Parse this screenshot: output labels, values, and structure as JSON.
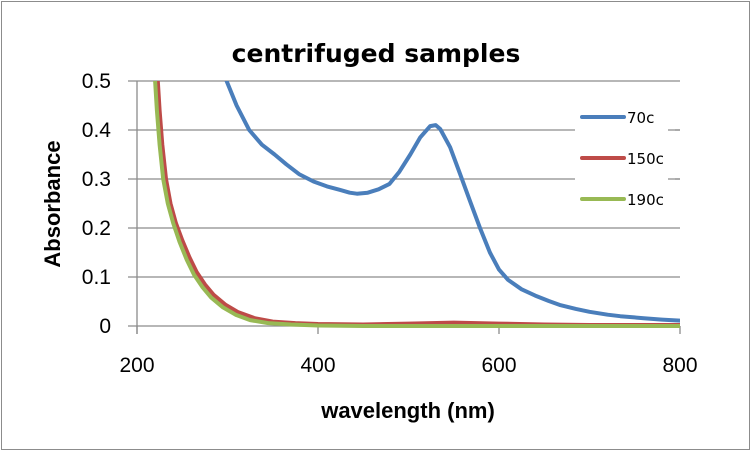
{
  "chart_data": {
    "type": "line",
    "title": "centrifuged samples",
    "xlabel": "wavelength (nm)",
    "ylabel": "Absorbance",
    "xlim": [
      200,
      800
    ],
    "ylim": [
      0,
      0.5
    ],
    "xticks": [
      200,
      400,
      600,
      800
    ],
    "xtick_labels": [
      "200",
      "400",
      "600",
      "800"
    ],
    "yticks": [
      0,
      0.1,
      0.2,
      0.3,
      0.4,
      0.5
    ],
    "ytick_labels": [
      "0",
      "0.1",
      "0.2",
      "0.3",
      "0.4",
      "0.5"
    ],
    "grid": "horizontal",
    "legend_position": "right",
    "series": [
      {
        "name": "70c",
        "color": "#4a7ebb",
        "x": [
          299,
          310,
          324,
          338,
          352,
          365,
          379,
          395,
          410,
          424,
          435,
          443,
          455,
          467,
          479,
          490,
          502,
          513,
          524,
          530,
          535,
          546,
          557,
          568,
          579,
          590,
          600,
          610,
          625,
          640,
          655,
          667,
          685,
          700,
          720,
          734,
          760,
          780,
          800
        ],
        "y": [
          0.5,
          0.45,
          0.4,
          0.37,
          0.35,
          0.33,
          0.31,
          0.295,
          0.285,
          0.278,
          0.272,
          0.27,
          0.272,
          0.279,
          0.29,
          0.315,
          0.35,
          0.385,
          0.408,
          0.41,
          0.402,
          0.365,
          0.31,
          0.255,
          0.2,
          0.15,
          0.115,
          0.094,
          0.075,
          0.062,
          0.051,
          0.043,
          0.035,
          0.029,
          0.023,
          0.02,
          0.016,
          0.013,
          0.011
        ]
      },
      {
        "name": "150c",
        "color": "#be4b48",
        "x": [
          223,
          225,
          228,
          232,
          237,
          243,
          250,
          258,
          266,
          275,
          285,
          298,
          312,
          330,
          350,
          375,
          400,
          450,
          500,
          550,
          600,
          650,
          700,
          750,
          800
        ],
        "y": [
          0.5,
          0.44,
          0.37,
          0.3,
          0.25,
          0.21,
          0.175,
          0.14,
          0.11,
          0.085,
          0.063,
          0.043,
          0.028,
          0.016,
          0.009,
          0.006,
          0.004,
          0.003,
          0.005,
          0.007,
          0.005,
          0.003,
          0.002,
          0.002,
          0.002
        ]
      },
      {
        "name": "190c",
        "color": "#98b954",
        "x": [
          220,
          222,
          225,
          229,
          234,
          240,
          247,
          255,
          263,
          272,
          282,
          295,
          309,
          325,
          345,
          370,
          400,
          450,
          500,
          550,
          600,
          650,
          700,
          750,
          800
        ],
        "y": [
          0.5,
          0.44,
          0.37,
          0.3,
          0.25,
          0.21,
          0.172,
          0.135,
          0.105,
          0.08,
          0.058,
          0.038,
          0.023,
          0.012,
          0.006,
          0.003,
          0.001,
          0.0,
          0.0,
          0.0,
          0.0,
          0.0,
          0.0,
          0.0,
          0.0
        ]
      }
    ]
  }
}
